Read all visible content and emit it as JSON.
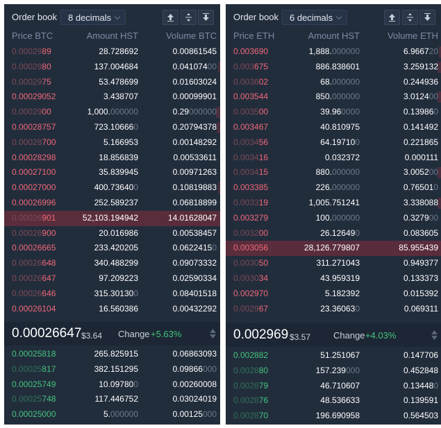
{
  "books": [
    {
      "title": "Order book",
      "decimals": "8 decimals",
      "headers": {
        "price": "Price BTC",
        "amount": "Amount HST",
        "volume": "Volume BTC"
      },
      "asks": [
        {
          "pd": "0.00029",
          "pm": "89",
          "a": "28.728692",
          "ad": "",
          "v": "0.00861545",
          "vd": "",
          "depth": 0,
          "dim": true
        },
        {
          "pd": "0.00029",
          "pm": "80",
          "a": "137.004684",
          "ad": "",
          "v": "0.041074",
          "vd": "00",
          "depth": 3,
          "dim": true
        },
        {
          "pd": "0.00029",
          "pm": "75",
          "a": "53.478699",
          "ad": "",
          "v": "0.01603024",
          "vd": "",
          "depth": 0,
          "dim": true
        },
        {
          "pd": "",
          "pm": "0.00029052",
          "a": "3.438707",
          "ad": "",
          "v": "0.00099901",
          "vd": "",
          "depth": 0,
          "dim": false
        },
        {
          "pd": "0.00029",
          "pm": "00",
          "a": "1,000.",
          "ad": "000000",
          "v": "0.29",
          "vd": "000000",
          "depth": 6,
          "dim": true
        },
        {
          "pd": "",
          "pm": "0.00028757",
          "a": "723.10666",
          "ad": "0",
          "v": "0.20794378",
          "vd": "",
          "depth": 5,
          "dim": false
        },
        {
          "pd": "0.00028",
          "pm": "700",
          "a": "5.166953",
          "ad": "",
          "v": "0.00148292",
          "vd": "",
          "depth": 0,
          "dim": true
        },
        {
          "pd": "",
          "pm": "0.00028298",
          "a": "18.856839",
          "ad": "",
          "v": "0.00533611",
          "vd": "",
          "depth": 0,
          "dim": false
        },
        {
          "pd": "",
          "pm": "0.00027100",
          "a": "35.839945",
          "ad": "",
          "v": "0.00971263",
          "vd": "",
          "depth": 0,
          "dim": false
        },
        {
          "pd": "",
          "pm": "0.00027000",
          "a": "400.73640",
          "ad": "0",
          "v": "0.10819883",
          "vd": "",
          "depth": 3,
          "dim": false
        },
        {
          "pd": "",
          "pm": "0.00026996",
          "a": "252.589237",
          "ad": "",
          "v": "0.06818899",
          "vd": "",
          "depth": 0,
          "dim": false
        },
        {
          "pd": "0.00026",
          "pm": "901",
          "a": "52,103.194942",
          "ad": "",
          "v": "14.01628047",
          "vd": "",
          "depth": 0,
          "dim": true,
          "hl": true
        },
        {
          "pd": "0.00026",
          "pm": "900",
          "a": "20.016986",
          "ad": "",
          "v": "0.00538457",
          "vd": "",
          "depth": 0,
          "dim": true
        },
        {
          "pd": "",
          "pm": "0.00026665",
          "a": "233.420205",
          "ad": "",
          "v": "0.0622415",
          "vd": "0",
          "depth": 0,
          "dim": false
        },
        {
          "pd": "0.00026",
          "pm": "648",
          "a": "340.488299",
          "ad": "",
          "v": "0.09073332",
          "vd": "",
          "depth": 0,
          "dim": true
        },
        {
          "pd": "0.00026",
          "pm": "647",
          "a": "97.209223",
          "ad": "",
          "v": "0.02590334",
          "vd": "",
          "depth": 0,
          "dim": true
        },
        {
          "pd": "0.00026",
          "pm": "646",
          "a": "315.30130",
          "ad": "0",
          "v": "0.08401518",
          "vd": "",
          "depth": 0,
          "dim": true
        },
        {
          "pd": "",
          "pm": "0.00026104",
          "a": "16.560386",
          "ad": "",
          "v": "0.00432292",
          "vd": "",
          "depth": 0,
          "dim": false
        }
      ],
      "mid": {
        "price": "0.00026647",
        "usd": "$3.64",
        "change_label": "Change",
        "change": "+5.63%"
      },
      "bids": [
        {
          "pd": "",
          "pm": "0.00025818",
          "a": "265.825915",
          "ad": "",
          "v": "0.06863093",
          "vd": "",
          "dim": false
        },
        {
          "pd": "0.00025",
          "pm": "817",
          "a": "382.151295",
          "ad": "",
          "v": "0.09866",
          "vd": "000",
          "dim": true
        },
        {
          "pd": "",
          "pm": "0.00025749",
          "a": "10.09780",
          "ad": "0",
          "v": "0.00260008",
          "vd": "",
          "dim": false
        },
        {
          "pd": "0.00025",
          "pm": "748",
          "a": "117.446752",
          "ad": "",
          "v": "0.03024019",
          "vd": "",
          "dim": true
        },
        {
          "pd": "",
          "pm": "0.00025000",
          "a": "5.",
          "ad": "000000",
          "v": "0.00125",
          "vd": "000",
          "dim": false
        }
      ]
    },
    {
      "title": "Order book",
      "decimals": "6 decimals",
      "headers": {
        "price": "Price ETH",
        "amount": "Amount HST",
        "volume": "Volume ETH"
      },
      "asks": [
        {
          "pd": "",
          "pm": "0.003690",
          "a": "1,888.",
          "ad": "000000",
          "v": "6.9667",
          "vd": "20",
          "depth": 4,
          "dim": false
        },
        {
          "pd": "0.003",
          "pm": "675",
          "a": "886.838601",
          "ad": "",
          "v": "3.259132",
          "vd": "",
          "depth": 6,
          "dim": true
        },
        {
          "pd": "0.0036",
          "pm": "02",
          "a": "68.",
          "ad": "000000",
          "v": "0.244936",
          "vd": "",
          "depth": 0,
          "dim": true
        },
        {
          "pd": "",
          "pm": "0.003544",
          "a": "850.",
          "ad": "000000",
          "v": "3.0124",
          "vd": "00",
          "depth": 6,
          "dim": false
        },
        {
          "pd": "0.0035",
          "pm": "00",
          "a": "39.96",
          "ad": "0000",
          "v": "0.13986",
          "vd": "0",
          "depth": 0,
          "dim": true
        },
        {
          "pd": "",
          "pm": "0.003467",
          "a": "40.810975",
          "ad": "",
          "v": "0.141492",
          "vd": "",
          "depth": 0,
          "dim": false
        },
        {
          "pd": "0.0034",
          "pm": "56",
          "a": "64.19710",
          "ad": "0",
          "v": "0.221865",
          "vd": "",
          "depth": 0,
          "dim": true
        },
        {
          "pd": "0.0034",
          "pm": "16",
          "a": "0.032372",
          "ad": "",
          "v": "0.000111",
          "vd": "",
          "depth": 0,
          "dim": true
        },
        {
          "pd": "0.0034",
          "pm": "15",
          "a": "880.",
          "ad": "000000",
          "v": "3.0052",
          "vd": "00",
          "depth": 6,
          "dim": true
        },
        {
          "pd": "",
          "pm": "0.003385",
          "a": "226.",
          "ad": "000000",
          "v": "0.76501",
          "vd": "0",
          "depth": 0,
          "dim": false
        },
        {
          "pd": "0.0033",
          "pm": "19",
          "a": "1,005.751241",
          "ad": "",
          "v": "3.338088",
          "vd": "",
          "depth": 6,
          "dim": true
        },
        {
          "pd": "",
          "pm": "0.003279",
          "a": "100.",
          "ad": "000000",
          "v": "0.3279",
          "vd": "00",
          "depth": 0,
          "dim": false
        },
        {
          "pd": "0.0032",
          "pm": "00",
          "a": "26.12649",
          "ad": "0",
          "v": "0.083605",
          "vd": "",
          "depth": 0,
          "dim": true
        },
        {
          "pd": "",
          "pm": "0.003056",
          "a": "28,126.779807",
          "ad": "",
          "v": "85.955439",
          "vd": "",
          "depth": 0,
          "dim": false,
          "hl": true
        },
        {
          "pd": "0.0030",
          "pm": "50",
          "a": "311.271043",
          "ad": "",
          "v": "0.949377",
          "vd": "",
          "depth": 0,
          "dim": true
        },
        {
          "pd": "0.0030",
          "pm": "34",
          "a": "43.959319",
          "ad": "",
          "v": "0.133373",
          "vd": "",
          "depth": 0,
          "dim": true
        },
        {
          "pd": "",
          "pm": "0.002970",
          "a": "5.182392",
          "ad": "",
          "v": "0.015392",
          "vd": "",
          "depth": 0,
          "dim": false
        },
        {
          "pd": "0.0029",
          "pm": "67",
          "a": "23.36063",
          "ad": "0",
          "v": "0.069311",
          "vd": "",
          "depth": 0,
          "dim": true
        }
      ],
      "mid": {
        "price": "0.002969",
        "usd": "$3.57",
        "change_label": "Change",
        "change": "+4.03%"
      },
      "bids": [
        {
          "pd": "",
          "pm": "0.002882",
          "a": "51.251067",
          "ad": "",
          "v": "0.147706",
          "vd": "",
          "dim": false
        },
        {
          "pd": "0.0028",
          "pm": "80",
          "a": "157.239",
          "ad": "000",
          "v": "0.452848",
          "vd": "",
          "dim": true
        },
        {
          "pd": "0.0028",
          "pm": "79",
          "a": "46.710607",
          "ad": "",
          "v": "0.13448",
          "vd": "0",
          "dim": true
        },
        {
          "pd": "0.0028",
          "pm": "76",
          "a": "48.536633",
          "ad": "",
          "v": "0.139591",
          "vd": "",
          "dim": true
        },
        {
          "pd": "0.0028",
          "pm": "70",
          "a": "196.690958",
          "ad": "",
          "v": "0.564503",
          "vd": "",
          "dim": true
        }
      ]
    }
  ]
}
